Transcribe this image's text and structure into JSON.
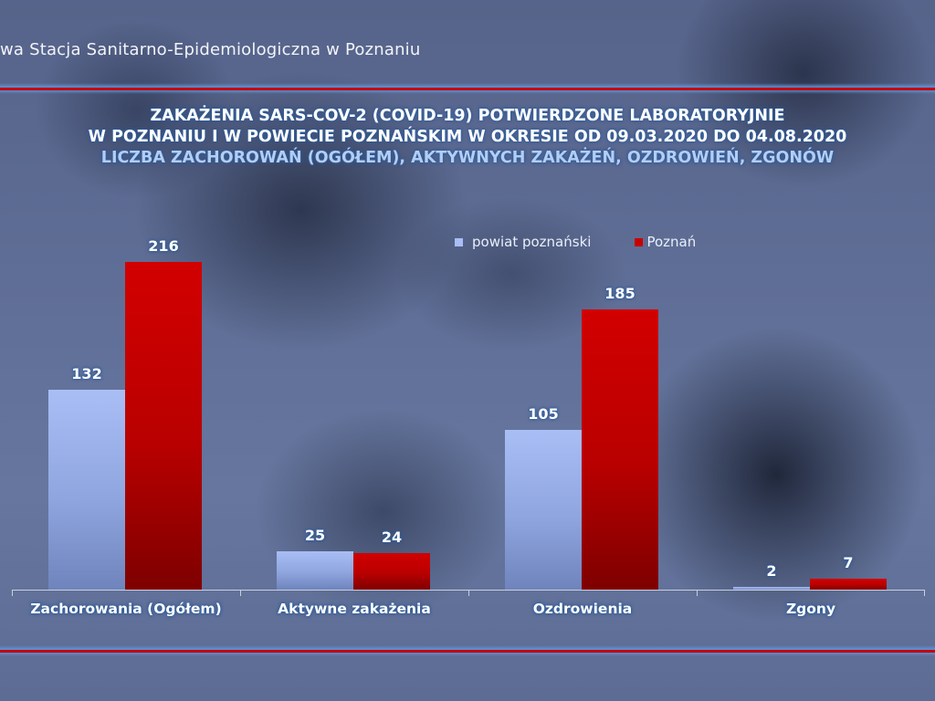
{
  "header": {
    "organization": "wa Stacja Sanitarno-Epidemiologiczna w Poznaniu"
  },
  "colors": {
    "series_powiat": "#a9bef5",
    "series_poznan": "#c80000",
    "rule_red": "#c80000",
    "rule_glow": "#5a96dc"
  },
  "chart_data": {
    "type": "bar",
    "title": "ZAKAŻENIA SARS-COV-2 (COVID-19) POTWIERDZONE LABORATORYJNIE",
    "title_line2": "W POZNANIU I W POWIECIE POZNAŃSKIM W OKRESIE OD 09.03.2020 DO 04.08.2020",
    "subtitle": "LICZBA ZACHOROWAŃ (OGÓŁEM), AKTYWNYCH ZAKAŻEŃ, OZDROWIEŃ, ZGONÓW",
    "categories": [
      "Zachorowania (Ogółem)",
      "Aktywne zakażenia",
      "Ozdrowienia",
      "Zgony"
    ],
    "series": [
      {
        "name": "powiat poznański",
        "values": [
          132,
          25,
          105,
          2
        ]
      },
      {
        "name": "Poznań",
        "values": [
          216,
          24,
          185,
          7
        ]
      }
    ],
    "xlabel": "",
    "ylabel": "",
    "ylim": [
      0,
      216
    ],
    "grid": false,
    "data_labels": true,
    "legend_position": "top-right"
  },
  "legend": {
    "items": [
      {
        "label": "powiat poznański"
      },
      {
        "label": "Poznań"
      }
    ]
  },
  "labels": {
    "g0": {
      "a": "132",
      "b": "216"
    },
    "g1": {
      "a": "25",
      "b": "24"
    },
    "g2": {
      "a": "105",
      "b": "185"
    },
    "g3": {
      "a": "2",
      "b": "7"
    }
  }
}
